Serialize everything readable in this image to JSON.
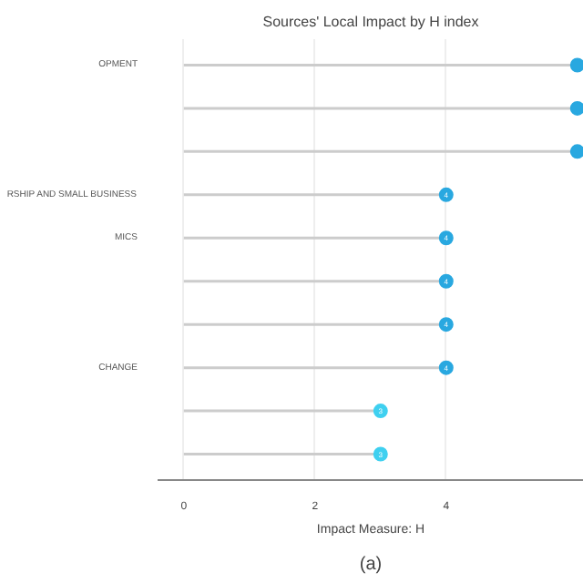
{
  "chart_data": {
    "type": "lollipop",
    "orientation": "horizontal",
    "title": "Sources' Local Impact by H index",
    "xlabel": "Impact Measure: H",
    "categories": [
      "OPMENT",
      null,
      null,
      "RSHIP AND SMALL BUSINESS",
      "MICS",
      null,
      null,
      "CHANGE",
      null,
      null
    ],
    "values": [
      6,
      6,
      6,
      4,
      4,
      4,
      4,
      4,
      3,
      3
    ],
    "value_labels": [
      null,
      null,
      null,
      "4",
      "4",
      "4",
      "4",
      "4",
      "3",
      "3"
    ],
    "colors": [
      "#29a8e0",
      "#29a8e0",
      "#29a8e0",
      "#29a8e0",
      "#29a8e0",
      "#29a8e0",
      "#29a8e0",
      "#29a8e0",
      "#3fd0f0",
      "#3fd0f0"
    ],
    "xlim": [
      -0.4,
      6.1
    ],
    "xticks": [
      0,
      2,
      4
    ],
    "grid": "x",
    "annotations": [
      "(a)"
    ]
  }
}
